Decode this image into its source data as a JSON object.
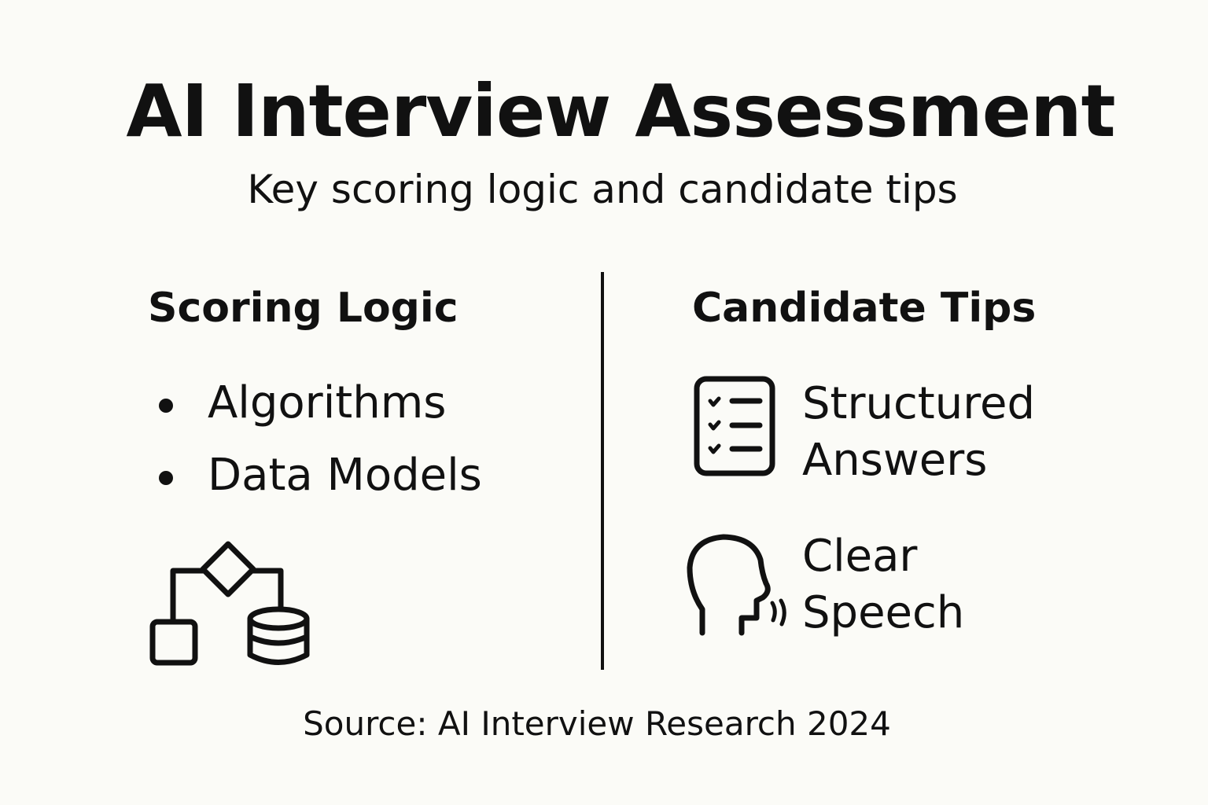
{
  "title": "AI Interview Assessment",
  "subtitle": "Key scoring logic and candidate tips",
  "left": {
    "heading": "Scoring Logic",
    "items": [
      "Algorithms",
      "Data Models"
    ],
    "icon": "flowchart-database-icon"
  },
  "right": {
    "heading": "Candidate Tips",
    "tips": [
      {
        "line1": "Structured",
        "line2": "Answers",
        "icon": "checklist-icon"
      },
      {
        "line1": "Clear",
        "line2": "Speech",
        "icon": "speaking-head-icon"
      }
    ]
  },
  "source": "Source: AI Interview Research 2024",
  "colors": {
    "background": "#fbfbf7",
    "ink": "#111111"
  }
}
